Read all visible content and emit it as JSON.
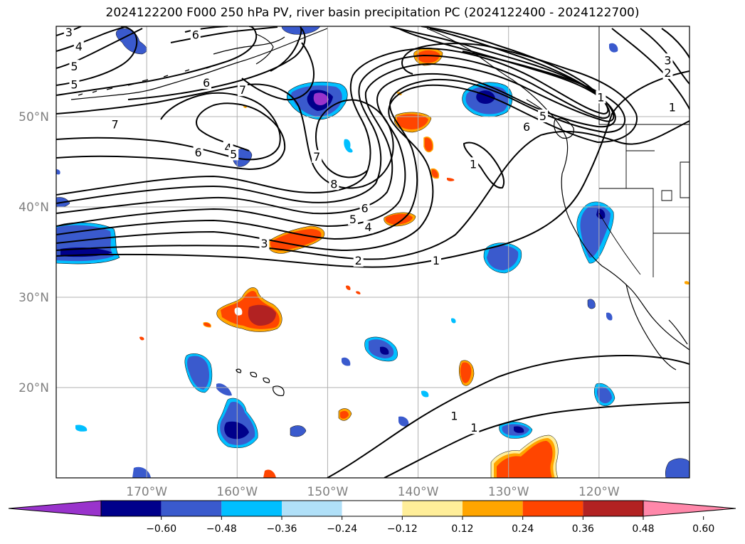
{
  "title": "2024122200 F000 250 hPa PV, river basin precipitation PC (2024122400 - 2024122700)",
  "map": {
    "lon_range": [
      -180,
      -110
    ],
    "lat_range": [
      10,
      60
    ],
    "lat_ticks": [
      {
        "value": 20,
        "label": "20°N"
      },
      {
        "value": 30,
        "label": "30°N"
      },
      {
        "value": 40,
        "label": "40°N"
      },
      {
        "value": 50,
        "label": "50°N"
      }
    ],
    "lon_ticks": [
      {
        "value": -170,
        "label": "170°W"
      },
      {
        "value": -160,
        "label": "160°W"
      },
      {
        "value": -150,
        "label": "150°W"
      },
      {
        "value": -140,
        "label": "140°W"
      },
      {
        "value": -130,
        "label": "130°W"
      },
      {
        "value": -120,
        "label": "120°W"
      }
    ]
  },
  "pv_contour_labels": [
    {
      "text": "3",
      "lon": -178.6,
      "lat": 59.3
    },
    {
      "text": "4",
      "lon": -177.5,
      "lat": 57.7
    },
    {
      "text": "5",
      "lon": -178.0,
      "lat": 55.5
    },
    {
      "text": "5",
      "lon": -178.0,
      "lat": 53.5
    },
    {
      "text": "6",
      "lon": -164.6,
      "lat": 59.0
    },
    {
      "text": "6",
      "lon": -163.4,
      "lat": 53.7
    },
    {
      "text": "7",
      "lon": -159.4,
      "lat": 52.9
    },
    {
      "text": "7",
      "lon": -173.5,
      "lat": 49.1
    },
    {
      "text": "6",
      "lon": -164.3,
      "lat": 46.0
    },
    {
      "text": "4",
      "lon": -161.0,
      "lat": 46.5
    },
    {
      "text": "5",
      "lon": -160.4,
      "lat": 45.8
    },
    {
      "text": "7",
      "lon": -151.2,
      "lat": 45.5
    },
    {
      "text": "8",
      "lon": -149.3,
      "lat": 42.5
    },
    {
      "text": "6",
      "lon": -145.9,
      "lat": 39.8
    },
    {
      "text": "5",
      "lon": -147.2,
      "lat": 38.6
    },
    {
      "text": "4",
      "lon": -145.5,
      "lat": 37.7
    },
    {
      "text": "3",
      "lon": -157.0,
      "lat": 35.9
    },
    {
      "text": "2",
      "lon": -146.6,
      "lat": 34.0
    },
    {
      "text": "1",
      "lon": -138.0,
      "lat": 34.0
    },
    {
      "text": "1",
      "lon": -133.9,
      "lat": 44.7
    },
    {
      "text": "1",
      "lon": -119.8,
      "lat": 52.1
    },
    {
      "text": "1",
      "lon": -111.9,
      "lat": 51.0
    },
    {
      "text": "2",
      "lon": -112.4,
      "lat": 54.8
    },
    {
      "text": "3",
      "lon": -112.4,
      "lat": 56.2
    },
    {
      "text": "5",
      "lon": -126.2,
      "lat": 50.0
    },
    {
      "text": "6",
      "lon": -128.0,
      "lat": 48.8
    },
    {
      "text": "1",
      "lon": -136.0,
      "lat": 16.8
    },
    {
      "text": "1",
      "lon": -133.8,
      "lat": 15.5
    }
  ],
  "colorbar": {
    "colors": [
      "#9933cc",
      "#00008b",
      "#3a5acd",
      "#00bfff",
      "#b0e0f8",
      "#ffffff",
      "#ffee99",
      "#ffa500",
      "#ff4500",
      "#b22222",
      "#ff88aa"
    ],
    "tick_labels": [
      "−0.60",
      "−0.48",
      "−0.36",
      "−0.24",
      "−0.12",
      "0.12",
      "0.24",
      "0.36",
      "0.48",
      "0.60"
    ]
  }
}
